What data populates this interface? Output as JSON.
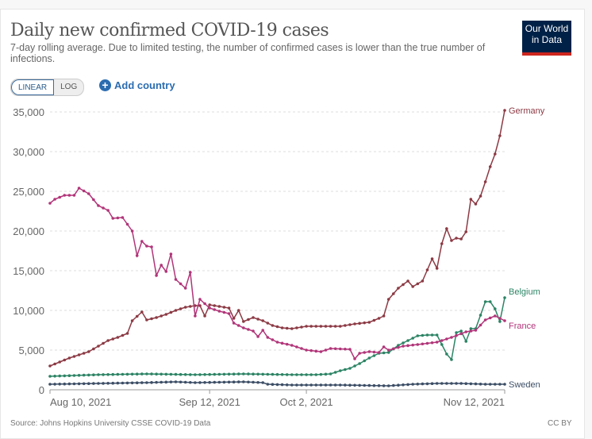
{
  "header": {
    "title": "Daily new confirmed COVID-19 cases",
    "subtitle": "7-day rolling average. Due to limited testing, the number of confirmed cases is lower than the true number of infections.",
    "logo": "Our World in Data"
  },
  "controls": {
    "linear": "LINEAR",
    "log": "LOG",
    "add_country": "Add country"
  },
  "footer": {
    "source": "Source: Johns Hopkins University CSSE COVID-19 Data",
    "license": "CC BY"
  },
  "chart_data": {
    "type": "line",
    "title": "Daily new confirmed COVID-19 cases",
    "ylim": [
      0,
      35000
    ],
    "yticks": [
      {
        "v": 0,
        "label": "0"
      },
      {
        "v": 5000,
        "label": "5,000"
      },
      {
        "v": 10000,
        "label": "10,000"
      },
      {
        "v": 15000,
        "label": "15,000"
      },
      {
        "v": 20000,
        "label": "20,000"
      },
      {
        "v": 25000,
        "label": "25,000"
      },
      {
        "v": 30000,
        "label": "30,000"
      },
      {
        "v": 35000,
        "label": "35,000"
      }
    ],
    "x_unit": "days since Aug 10, 2021",
    "xlim": [
      0,
      94
    ],
    "xticks": [
      {
        "v": 0,
        "label": "Aug 10, 2021"
      },
      {
        "v": 33,
        "label": "Sep 12, 2021"
      },
      {
        "v": 53,
        "label": "Oct 2, 2021"
      },
      {
        "v": 94,
        "label": "Nov 12, 2021"
      }
    ],
    "series": [
      {
        "name": "Germany",
        "color": "#8c3a44",
        "points": [
          [
            0,
            3000
          ],
          [
            2,
            3500
          ],
          [
            4,
            4000
          ],
          [
            6,
            4400
          ],
          [
            8,
            4800
          ],
          [
            10,
            5500
          ],
          [
            12,
            6200
          ],
          [
            14,
            6600
          ],
          [
            16,
            7100
          ],
          [
            17,
            8700
          ],
          [
            19,
            9800
          ],
          [
            20,
            8800
          ],
          [
            22,
            9100
          ],
          [
            24,
            9500
          ],
          [
            26,
            10000
          ],
          [
            28,
            10400
          ],
          [
            30,
            10600
          ],
          [
            31,
            10600
          ],
          [
            32,
            9300
          ],
          [
            33,
            10700
          ],
          [
            35,
            10500
          ],
          [
            37,
            10300
          ],
          [
            38,
            9000
          ],
          [
            39,
            10000
          ],
          [
            40,
            8600
          ],
          [
            42,
            9100
          ],
          [
            44,
            8700
          ],
          [
            46,
            8100
          ],
          [
            48,
            7800
          ],
          [
            50,
            7700
          ],
          [
            53,
            8000
          ],
          [
            56,
            8000
          ],
          [
            60,
            8000
          ],
          [
            63,
            8300
          ],
          [
            66,
            8500
          ],
          [
            68,
            9000
          ],
          [
            69,
            9300
          ],
          [
            70,
            11400
          ],
          [
            72,
            12800
          ],
          [
            74,
            13700
          ],
          [
            75,
            13000
          ],
          [
            77,
            13700
          ],
          [
            79,
            16500
          ],
          [
            80,
            15300
          ],
          [
            81,
            18400
          ],
          [
            82,
            20300
          ],
          [
            83,
            18800
          ],
          [
            84,
            19100
          ],
          [
            85,
            19000
          ],
          [
            86,
            19900
          ],
          [
            87,
            24000
          ],
          [
            88,
            23400
          ],
          [
            89,
            24400
          ],
          [
            90,
            26200
          ],
          [
            91,
            28100
          ],
          [
            92,
            29700
          ],
          [
            93,
            32000
          ],
          [
            94,
            35200
          ]
        ]
      },
      {
        "name": "Belgium",
        "color": "#2c8465",
        "points": [
          [
            0,
            1700
          ],
          [
            10,
            1900
          ],
          [
            20,
            2000
          ],
          [
            30,
            1900
          ],
          [
            40,
            2000
          ],
          [
            50,
            1900
          ],
          [
            55,
            1900
          ],
          [
            58,
            2000
          ],
          [
            60,
            2400
          ],
          [
            62,
            2700
          ],
          [
            64,
            3300
          ],
          [
            66,
            4000
          ],
          [
            68,
            4600
          ],
          [
            70,
            4700
          ],
          [
            72,
            5600
          ],
          [
            74,
            6200
          ],
          [
            76,
            6800
          ],
          [
            78,
            6900
          ],
          [
            80,
            6900
          ],
          [
            82,
            4500
          ],
          [
            83,
            3800
          ],
          [
            84,
            7200
          ],
          [
            85,
            7400
          ],
          [
            86,
            6100
          ],
          [
            87,
            7700
          ],
          [
            88,
            7700
          ],
          [
            90,
            11100
          ],
          [
            91,
            11100
          ],
          [
            92,
            10200
          ],
          [
            93,
            8600
          ],
          [
            94,
            11600
          ]
        ]
      },
      {
        "name": "France",
        "color": "#b13579",
        "points": [
          [
            0,
            23500
          ],
          [
            1,
            24000
          ],
          [
            3,
            24500
          ],
          [
            5,
            24500
          ],
          [
            6,
            25400
          ],
          [
            8,
            24700
          ],
          [
            10,
            23200
          ],
          [
            12,
            22600
          ],
          [
            13,
            21600
          ],
          [
            15,
            21700
          ],
          [
            17,
            20000
          ],
          [
            18,
            16900
          ],
          [
            19,
            18700
          ],
          [
            20,
            18100
          ],
          [
            21,
            18000
          ],
          [
            22,
            14400
          ],
          [
            23,
            15700
          ],
          [
            24,
            14900
          ],
          [
            25,
            17100
          ],
          [
            26,
            13900
          ],
          [
            28,
            12800
          ],
          [
            29,
            14800
          ],
          [
            30,
            9300
          ],
          [
            31,
            11400
          ],
          [
            33,
            10300
          ],
          [
            35,
            9900
          ],
          [
            37,
            9600
          ],
          [
            38,
            8400
          ],
          [
            40,
            7800
          ],
          [
            42,
            7400
          ],
          [
            43,
            6700
          ],
          [
            44,
            7500
          ],
          [
            45,
            6600
          ],
          [
            47,
            6000
          ],
          [
            50,
            5600
          ],
          [
            53,
            5000
          ],
          [
            56,
            4800
          ],
          [
            58,
            5200
          ],
          [
            62,
            5100
          ],
          [
            63,
            3900
          ],
          [
            64,
            4600
          ],
          [
            66,
            4800
          ],
          [
            68,
            4700
          ],
          [
            69,
            5400
          ],
          [
            70,
            5000
          ],
          [
            73,
            5500
          ],
          [
            76,
            5700
          ],
          [
            80,
            6000
          ],
          [
            83,
            6600
          ],
          [
            86,
            7300
          ],
          [
            88,
            7500
          ],
          [
            90,
            8800
          ],
          [
            92,
            9300
          ],
          [
            94,
            8700
          ]
        ]
      },
      {
        "name": "Sweden",
        "color": "#3c4e66",
        "points": [
          [
            0,
            700
          ],
          [
            10,
            800
          ],
          [
            20,
            900
          ],
          [
            26,
            1000
          ],
          [
            30,
            900
          ],
          [
            40,
            1000
          ],
          [
            44,
            900
          ],
          [
            45,
            700
          ],
          [
            50,
            600
          ],
          [
            60,
            600
          ],
          [
            70,
            500
          ],
          [
            75,
            700
          ],
          [
            80,
            800
          ],
          [
            85,
            800
          ],
          [
            90,
            700
          ],
          [
            94,
            700
          ]
        ]
      }
    ]
  }
}
